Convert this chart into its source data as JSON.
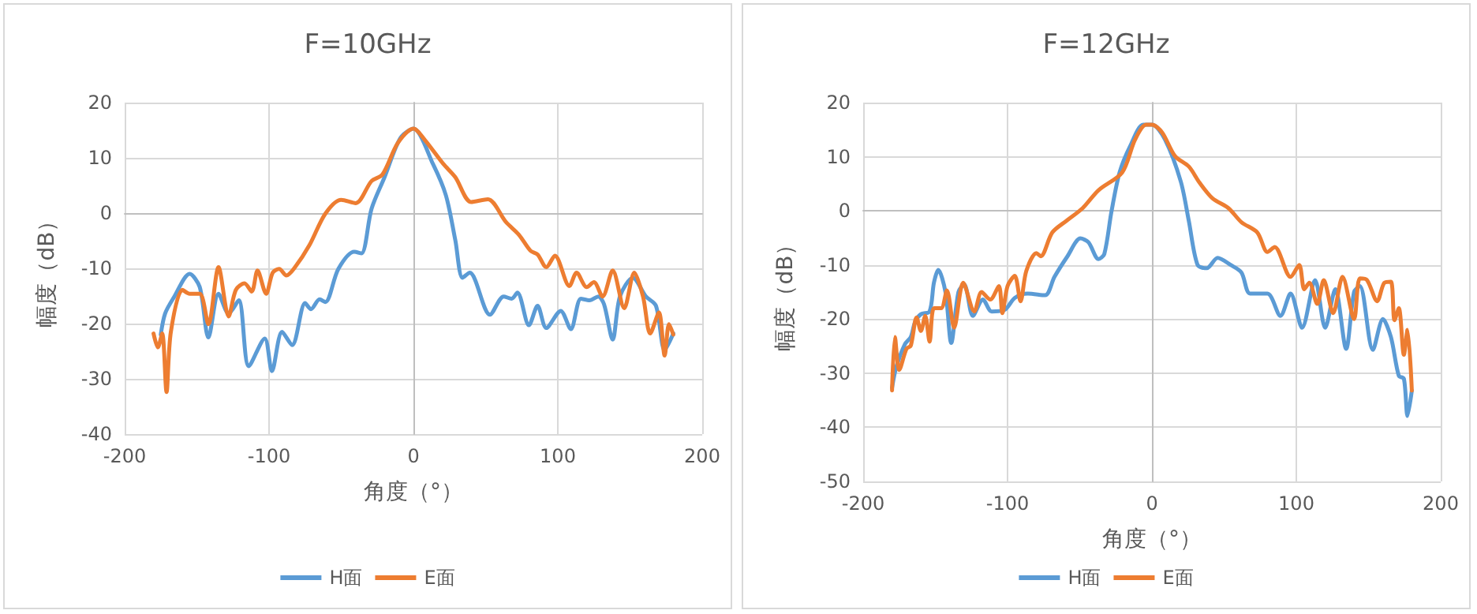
{
  "chart_data": [
    {
      "type": "line",
      "title": "F=10GHz",
      "xlabel": "角度（°）",
      "ylabel": "幅度（dB）",
      "xlim": [
        -200,
        200
      ],
      "xticks": [
        -200,
        -100,
        0,
        100,
        200
      ],
      "ylim": [
        -40,
        20
      ],
      "yticks": [
        -40,
        -30,
        -20,
        -10,
        0,
        10,
        20
      ],
      "grid": true,
      "legend": "bottom",
      "marker": "none",
      "line_style": "solid",
      "series": [
        {
          "name": "H面",
          "color": "#5b9bd5",
          "x": [
            -175,
            -172,
            -166,
            -155,
            -148,
            -142,
            -135,
            -128,
            -121,
            -114,
            -103,
            -98,
            -91,
            -84,
            -75,
            -71,
            -65,
            -61,
            -52,
            -41,
            -36,
            -29,
            -20,
            -9,
            0,
            13.5,
            22.5,
            29,
            34,
            39,
            53,
            62.5,
            68,
            72,
            80,
            86,
            92,
            102,
            109,
            116,
            122,
            128,
            132,
            138,
            143,
            152,
            161,
            168,
            174,
            180
          ],
          "values": [
            -22,
            -18.2,
            -15.3,
            -11,
            -13.4,
            -22.5,
            -14.6,
            -18.2,
            -15.8,
            -27.7,
            -22.7,
            -28.6,
            -21.5,
            -23.9,
            -16.3,
            -17.4,
            -15.6,
            -16.1,
            -10.1,
            -7,
            -7.3,
            0.8,
            6.5,
            13.6,
            15.3,
            8.9,
            3.2,
            -4.9,
            -11.7,
            -10.8,
            -18.4,
            -15.1,
            -15.5,
            -14.4,
            -20.3,
            -16.8,
            -20.8,
            -17.7,
            -21,
            -15.5,
            -15.8,
            -15.1,
            -16.5,
            -22.9,
            -15.1,
            -11.7,
            -15.1,
            -16.8,
            -24.8,
            -21.8
          ]
        },
        {
          "name": "E面",
          "color": "#ed7d31",
          "x": [
            -180,
            -177,
            -174,
            -171,
            -168,
            -160,
            -155,
            -148,
            -142,
            -135,
            -128,
            -123,
            -117,
            -112,
            -108,
            -102,
            -97.5,
            -93,
            -88,
            -82,
            -72,
            -61,
            -50,
            -40,
            -29,
            -21.4,
            -10.8,
            0,
            8,
            20.7,
            29,
            40,
            51.6,
            64,
            73,
            81,
            86,
            92,
            98,
            108,
            113,
            120,
            125,
            131,
            138,
            146,
            153,
            159,
            164,
            170,
            174,
            177,
            180
          ],
          "values": [
            -21.8,
            -24.3,
            -21.8,
            -32.4,
            -21.5,
            -13.9,
            -14.6,
            -14.6,
            -20.1,
            -9.8,
            -18.7,
            -13.9,
            -12.7,
            -14.2,
            -10.4,
            -14.6,
            -10.8,
            -10.1,
            -11.3,
            -9.8,
            -5.8,
            -0.1,
            2.4,
            1.8,
            5.8,
            7,
            12.7,
            15.3,
            13.2,
            8.9,
            6.5,
            2,
            2.5,
            -1.6,
            -3.9,
            -6.8,
            -7.5,
            -9.8,
            -7.7,
            -13.2,
            -10.8,
            -13.4,
            -12.5,
            -15.1,
            -10.4,
            -17.2,
            -10.8,
            -15.1,
            -21.8,
            -18,
            -25.8,
            -20.1,
            -22
          ]
        }
      ]
    },
    {
      "type": "line",
      "title": "F=12GHz",
      "xlabel": "角度（°）",
      "ylabel": "幅度（dB）",
      "xlim": [
        -200,
        200
      ],
      "xticks": [
        -200,
        -100,
        0,
        100,
        200
      ],
      "ylim": [
        -50,
        20
      ],
      "yticks": [
        -50,
        -40,
        -30,
        -20,
        -10,
        0,
        10,
        20
      ],
      "grid": true,
      "legend": "bottom",
      "marker": "none",
      "line_style": "solid",
      "series": [
        {
          "name": "H面",
          "color": "#5b9bd5",
          "x": [
            -180,
            -177,
            -171,
            -167,
            -164,
            -160,
            -154,
            -151,
            -148,
            -143,
            -139,
            -134,
            -130,
            -124,
            -117,
            -111,
            -102,
            -95,
            -86,
            -74,
            -67.5,
            -58.5,
            -49.5,
            -44,
            -37,
            -33,
            -28,
            -22.4,
            -15,
            -6,
            0,
            9,
            20,
            25.5,
            31.6,
            38,
            45.5,
            54.5,
            62,
            68,
            80,
            89,
            96,
            104,
            113,
            120,
            127,
            134.5,
            140,
            144,
            153,
            160,
            165.5,
            171,
            174.5,
            177,
            180
          ],
          "values": [
            -32.7,
            -28.8,
            -24.6,
            -23.3,
            -20.5,
            -19.1,
            -18.6,
            -13.3,
            -10.9,
            -15,
            -24.4,
            -15,
            -13.6,
            -19.4,
            -16.4,
            -18.6,
            -18.3,
            -16.1,
            -15.3,
            -15.6,
            -12.2,
            -8.4,
            -5.1,
            -5.8,
            -8.9,
            -8,
            -0.1,
            7.1,
            12,
            15.9,
            15.9,
            13.2,
            5.4,
            -1.8,
            -10,
            -10.6,
            -8.7,
            -10,
            -11.4,
            -15.3,
            -15.3,
            -19.4,
            -15.3,
            -21.6,
            -12.8,
            -21.6,
            -14.5,
            -25.5,
            -15,
            -13.9,
            -25.7,
            -20,
            -23.3,
            -30.5,
            -31,
            -37.9,
            -33.2
          ]
        },
        {
          "name": "E面",
          "color": "#ed7d31",
          "x": [
            -180,
            -178,
            -175,
            -170,
            -167,
            -163,
            -160,
            -157,
            -154,
            -151,
            -146,
            -142,
            -137,
            -130.7,
            -123,
            -118,
            -112,
            -106,
            -103.6,
            -100,
            -95,
            -91,
            -87,
            -80,
            -77,
            -69,
            -59,
            -48,
            -37,
            -20.6,
            -11.6,
            -4,
            0,
            7,
            16,
            25.5,
            33,
            42,
            53,
            62,
            73,
            80,
            85,
            96,
            102,
            105.5,
            109,
            114.5,
            119,
            125.5,
            132,
            140,
            144,
            149,
            156,
            161,
            165.5,
            168,
            171,
            174.5,
            177,
            180
          ],
          "values": [
            -33.2,
            -23.3,
            -29.4,
            -25.5,
            -24.9,
            -19.7,
            -22.2,
            -19.4,
            -24.2,
            -18,
            -18,
            -14.7,
            -21.6,
            -13.3,
            -18.6,
            -15,
            -16.4,
            -13.9,
            -18.9,
            -13.9,
            -12,
            -16.7,
            -11.1,
            -7.8,
            -8.4,
            -4,
            -1.8,
            0.5,
            3.8,
            7.1,
            13.2,
            15.9,
            15.9,
            14.5,
            10.1,
            8.2,
            5.2,
            2.3,
            0.5,
            -2.1,
            -4,
            -7.6,
            -6.7,
            -12.2,
            -10,
            -14.5,
            -13.3,
            -17.2,
            -12.8,
            -18.9,
            -12.2,
            -20,
            -12.5,
            -12.8,
            -16.7,
            -13.3,
            -13.1,
            -20.2,
            -18,
            -26.6,
            -22,
            -33.2
          ]
        }
      ]
    }
  ]
}
